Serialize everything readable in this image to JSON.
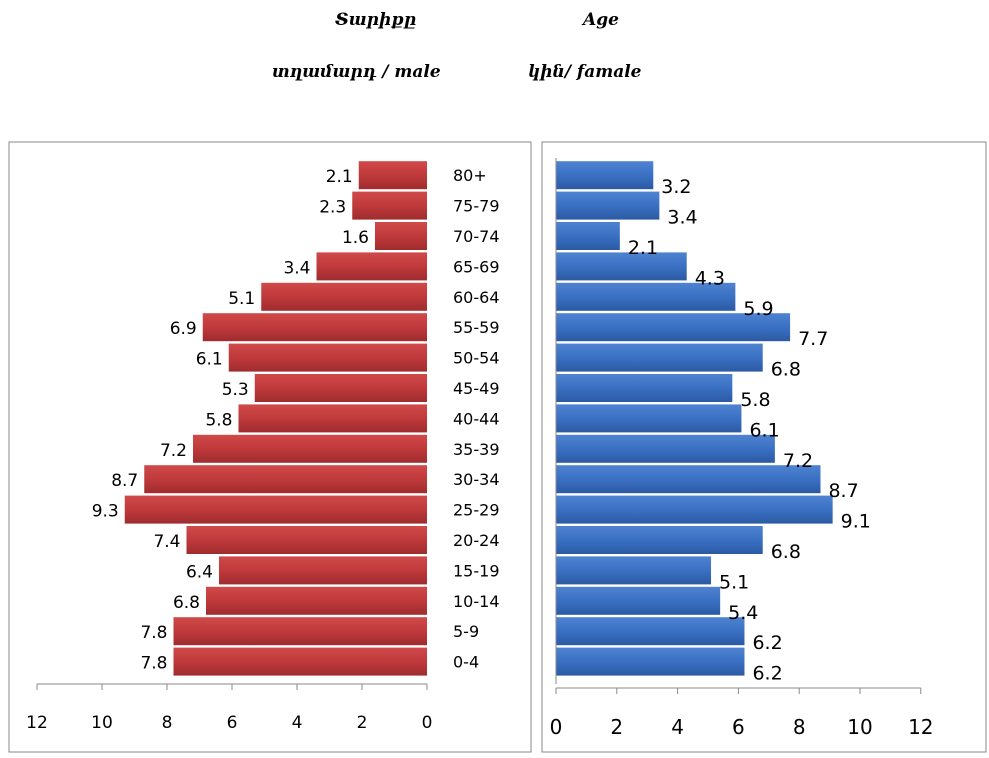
{
  "header": {
    "left_title": "Տարիքը",
    "right_title": "Age",
    "male_label": "տղամարդ / male",
    "female_label": "կին/ famale"
  },
  "chart_data": {
    "type": "bar",
    "orientation": "horizontal-population-pyramid",
    "categories": [
      "0-4",
      "5-9",
      "10-14",
      "15-19",
      "20-24",
      "25-29",
      "30-34",
      "35-39",
      "40-44",
      "45-49",
      "50-54",
      "55-59",
      "60-64",
      "65-69",
      "70-74",
      "75-79",
      "80+"
    ],
    "series": [
      {
        "name": "տղամարդ / male",
        "values": [
          7.8,
          7.8,
          6.8,
          6.4,
          7.4,
          9.3,
          8.7,
          7.2,
          5.8,
          5.3,
          6.1,
          6.9,
          5.1,
          3.4,
          1.6,
          2.3,
          2.1
        ]
      },
      {
        "name": "կին/ famale",
        "values": [
          6.2,
          6.2,
          5.4,
          5.1,
          6.8,
          9.1,
          8.7,
          7.2,
          6.1,
          5.8,
          6.8,
          7.7,
          5.9,
          4.3,
          2.1,
          3.4,
          3.2
        ]
      }
    ],
    "left_axis": {
      "ticks": [
        12,
        10,
        8,
        6,
        4,
        2,
        0
      ],
      "range": [
        0,
        12
      ],
      "reversed": true
    },
    "right_axis": {
      "ticks": [
        0,
        2,
        4,
        6,
        8,
        10,
        12
      ],
      "range": [
        0,
        12
      ]
    },
    "data_labels": true,
    "grid": false,
    "colors": {
      "male": "#c0393b",
      "female": "#3a70c3"
    }
  }
}
